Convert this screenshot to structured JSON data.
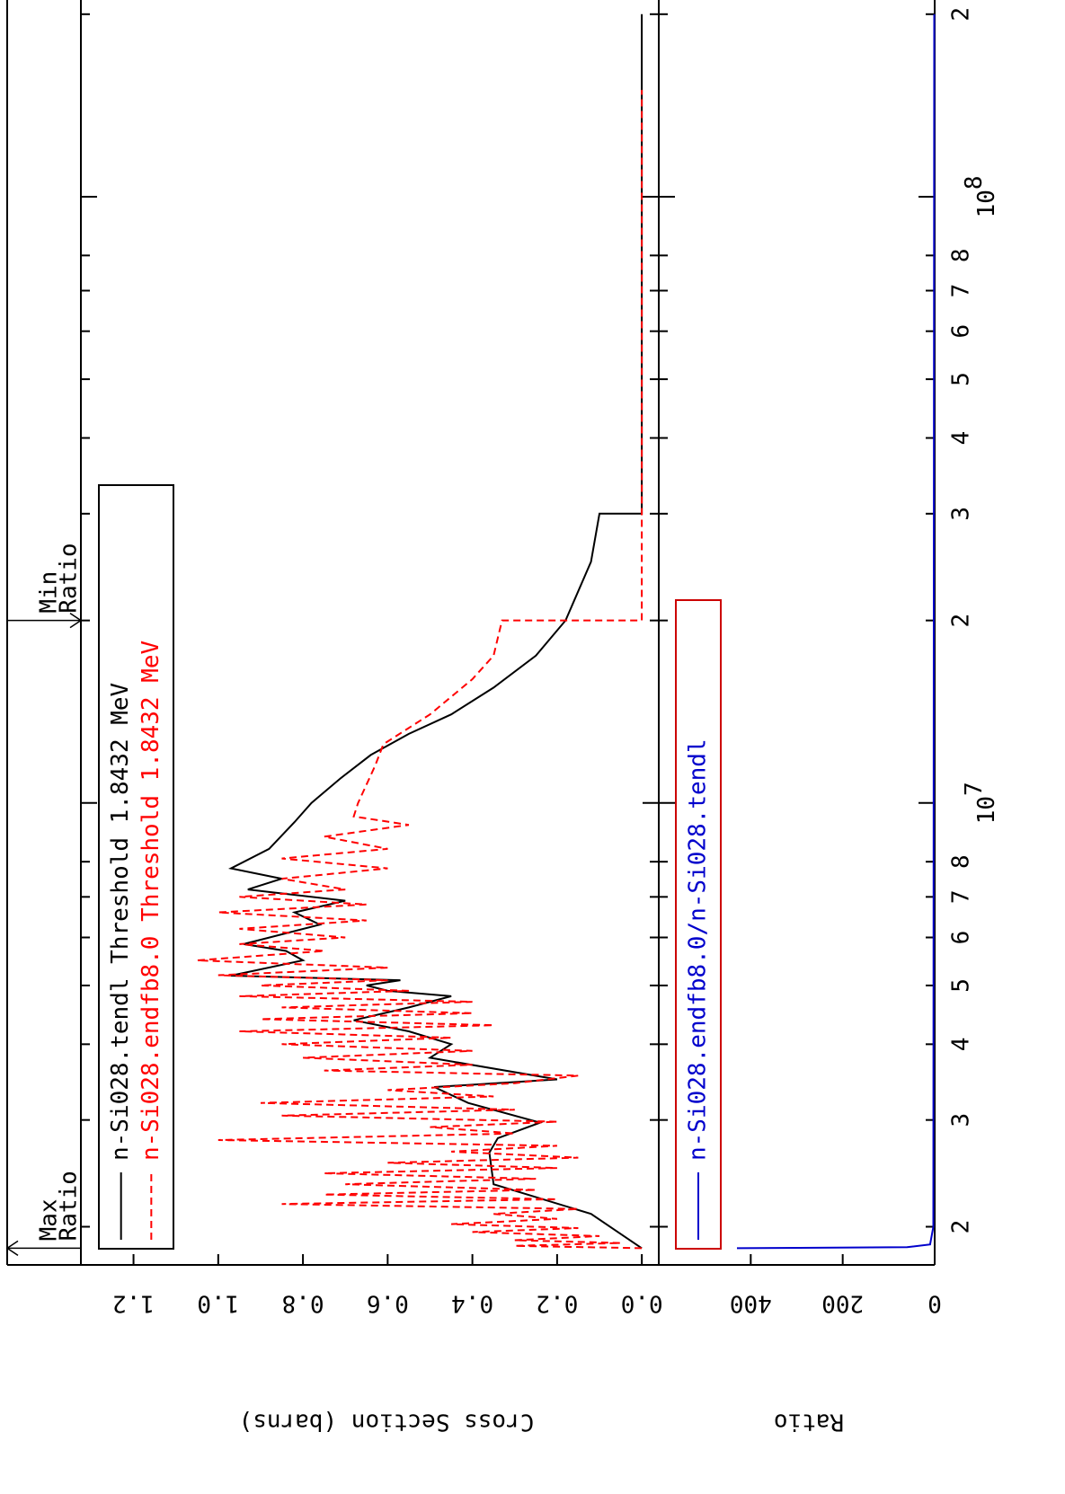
{
  "chart_data": [
    {
      "type": "line",
      "ylabel": "Cross Section (barns)",
      "xlog": true,
      "xlim": [
        1730000,
        204000000
      ],
      "xticks": [
        {
          "value": 2000000,
          "label": "2"
        },
        {
          "value": 3000000,
          "label": "3"
        },
        {
          "value": 4000000,
          "label": "4"
        },
        {
          "value": 5000000,
          "label": "5"
        },
        {
          "value": 6000000,
          "label": "6"
        },
        {
          "value": 7000000,
          "label": "7"
        },
        {
          "value": 8000000,
          "label": "8"
        },
        {
          "value": 10000000,
          "label": "10",
          "exponent": "7"
        },
        {
          "value": 20000000,
          "label": "2"
        },
        {
          "value": 30000000,
          "label": "3"
        },
        {
          "value": 40000000,
          "label": "4"
        },
        {
          "value": 50000000,
          "label": "5"
        },
        {
          "value": 60000000,
          "label": "6"
        },
        {
          "value": 70000000,
          "label": "7"
        },
        {
          "value": 80000000,
          "label": "8"
        },
        {
          "value": 100000000,
          "label": "10",
          "exponent": "8"
        },
        {
          "value": 200000000,
          "label": "2"
        }
      ],
      "ylim": [
        -0.04,
        1.32
      ],
      "yticks": [
        {
          "value": 0,
          "label": "0.0"
        },
        {
          "value": 0.2,
          "label": "0.2"
        },
        {
          "value": 0.4,
          "label": "0.4"
        },
        {
          "value": 0.6,
          "label": "0.6"
        },
        {
          "value": 0.8,
          "label": "0.8"
        },
        {
          "value": 1.0,
          "label": "1.0"
        },
        {
          "value": 1.2,
          "label": "1.2"
        }
      ],
      "annotations": [
        {
          "text": [
            "Max",
            "Ratio"
          ],
          "x": 1843200
        },
        {
          "text": [
            "Min",
            "Ratio"
          ],
          "x": 20000000
        }
      ],
      "series": [
        {
          "name": "n-Si028.tendl Threshold 1.8432 MeV",
          "color": "#000000",
          "dash": false,
          "x": [
            1843200,
            2100000,
            2350000,
            2650000,
            2800000,
            2970000,
            3200000,
            3400000,
            3500000,
            3800000,
            4000000,
            4200000,
            4380000,
            4600000,
            4800000,
            4900000,
            5000000,
            5100000,
            5190000,
            5500000,
            5700000,
            5850000,
            6300000,
            6600000,
            6900000,
            7200000,
            7500000,
            7800000,
            8400000,
            9300000,
            10000000,
            11000000,
            12000000,
            13000000,
            14000000,
            15500000,
            17500000,
            20000000,
            25000000,
            30000000,
            30000000,
            200000000
          ],
          "values": [
            0,
            0.12,
            0.35,
            0.36,
            0.34,
            0.24,
            0.41,
            0.49,
            0.2,
            0.5,
            0.45,
            0.55,
            0.68,
            0.55,
            0.45,
            0.6,
            0.65,
            0.57,
            0.97,
            0.8,
            0.84,
            0.94,
            0.76,
            0.82,
            0.7,
            0.93,
            0.85,
            0.97,
            0.88,
            0.82,
            0.78,
            0.71,
            0.64,
            0.55,
            0.45,
            0.35,
            0.25,
            0.18,
            0.12,
            0.1,
            0,
            0
          ]
        },
        {
          "name": "n-Si028.endfb8.0 Threshold 1.8432 MeV",
          "color": "#ff0000",
          "dash": true,
          "x": [
            1843200,
            1860000,
            1880000,
            1900000,
            1930000,
            1960000,
            1990000,
            2020000,
            2060000,
            2100000,
            2140000,
            2180000,
            2220000,
            2260000,
            2300000,
            2350000,
            2400000,
            2450000,
            2500000,
            2550000,
            2600000,
            2660000,
            2720000,
            2780000,
            2850000,
            2920000,
            2980000,
            3050000,
            3120000,
            3200000,
            3280000,
            3360000,
            3450000,
            3550000,
            3620000,
            3700000,
            3800000,
            3900000,
            4000000,
            4100000,
            4200000,
            4300000,
            4400000,
            4500000,
            4600000,
            4700000,
            4800000,
            4900000,
            5000000,
            5100000,
            5200000,
            5350000,
            5500000,
            5700000,
            5850000,
            6000000,
            6200000,
            6400000,
            6600000,
            6800000,
            7000000,
            7200000,
            7500000,
            7800000,
            8100000,
            8400000,
            8800000,
            9200000,
            9500000,
            10000000,
            11500000,
            12500000,
            14000000,
            16000000,
            17500000,
            20000000,
            20000000,
            150000000
          ],
          "values": [
            0,
            0.3,
            0.05,
            0.3,
            0.1,
            0.4,
            0.15,
            0.45,
            0.2,
            0.35,
            0.15,
            0.85,
            0.2,
            0.75,
            0.25,
            0.7,
            0.25,
            0.75,
            0.2,
            0.6,
            0.15,
            0.45,
            0.2,
            1.0,
            0.3,
            0.5,
            0.2,
            0.85,
            0.3,
            0.9,
            0.35,
            0.6,
            0.3,
            0.15,
            0.75,
            0.4,
            0.8,
            0.4,
            0.85,
            0.45,
            0.95,
            0.35,
            0.9,
            0.4,
            0.85,
            0.4,
            0.95,
            0.55,
            0.9,
            0.6,
            1.0,
            0.6,
            1.05,
            0.75,
            0.95,
            0.7,
            0.95,
            0.65,
            1.0,
            0.65,
            0.95,
            0.7,
            0.85,
            0.6,
            0.85,
            0.6,
            0.75,
            0.55,
            0.68,
            0.67,
            0.63,
            0.61,
            0.5,
            0.4,
            0.35,
            0.33,
            0,
            0
          ]
        }
      ]
    },
    {
      "type": "line",
      "ylabel": "Ratio",
      "xlog": true,
      "xlim": [
        1730000,
        204000000
      ],
      "ylim": [
        0,
        600
      ],
      "yticks": [
        0,
        200,
        400
      ],
      "series": [
        {
          "name": "n-Si028.endfb8.0/n-Si028.tendl",
          "color": "#0000cc",
          "dash": false,
          "x": [
            1843200,
            1850000,
            1870000,
            2000000,
            200000000
          ],
          "values": [
            430,
            60,
            10,
            3,
            1
          ]
        }
      ]
    }
  ]
}
